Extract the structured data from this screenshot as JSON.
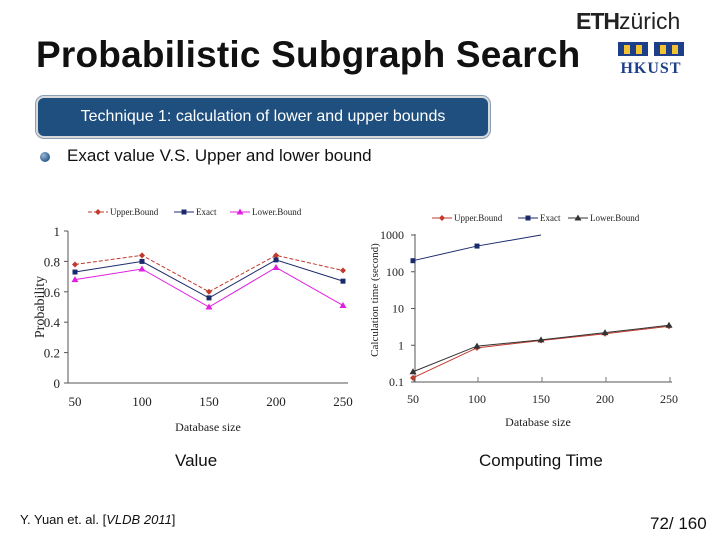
{
  "slide": {
    "title": "Probabilistic Subgraph Search",
    "technique_label": "Technique 1: calculation of lower and upper bounds",
    "bullet": "Exact value V.S. Upper and lower bound",
    "caption_left": "Value",
    "caption_right": "Computing Time",
    "footnote": {
      "prefix": "Y. Yuan et. al. [",
      "venue": "VLDB 2011",
      "suffix": "]"
    },
    "page": "72/ 160"
  },
  "logos": {
    "eth_bold": "ETH",
    "eth_rest": "zürich",
    "hkust": "HKUST"
  },
  "colors": {
    "upper": "#c0392b",
    "exact": "#1b2a6b",
    "lower": "#e020e0",
    "time_lower": "#333333",
    "banner": "#1f4f7e"
  },
  "chart_data": [
    {
      "type": "line",
      "title": "",
      "xlabel": "Database size",
      "ylabel": "Probability",
      "categories": [
        "50",
        "100",
        "150",
        "200",
        "250"
      ],
      "ylim": [
        0,
        1
      ],
      "yticks": [
        "0",
        "0.2",
        "0.4",
        "0.6",
        "0.8",
        "1"
      ],
      "yticks_values": [
        0,
        0.2,
        0.4,
        0.6,
        0.8,
        1
      ],
      "series": [
        {
          "name": "Upper.Bound",
          "values": [
            0.78,
            0.84,
            0.6,
            0.84,
            0.74
          ]
        },
        {
          "name": "Exact",
          "values": [
            0.73,
            0.8,
            0.56,
            0.81,
            0.67
          ]
        },
        {
          "name": "Lower.Bound",
          "values": [
            0.68,
            0.75,
            0.5,
            0.76,
            0.51
          ]
        }
      ]
    },
    {
      "type": "line",
      "title": "",
      "xlabel": "Database size",
      "ylabel": "Calculation time (second)",
      "yscale": "log",
      "categories": [
        "50",
        "100",
        "150",
        "200",
        "250"
      ],
      "ylim": [
        0.1,
        1000
      ],
      "yticks": [
        "0.1",
        "1",
        "10",
        "100",
        "1000"
      ],
      "yticks_values": [
        0.1,
        1,
        10,
        100,
        1000
      ],
      "series": [
        {
          "name": "Upper.Bound",
          "values": [
            0.13,
            0.85,
            1.35,
            2.05,
            3.3
          ]
        },
        {
          "name": "Exact",
          "values": [
            200,
            500,
            1100,
            null,
            null
          ]
        },
        {
          "name": "Lower.Bound",
          "values": [
            0.19,
            0.95,
            1.4,
            2.2,
            3.5
          ]
        }
      ]
    }
  ]
}
